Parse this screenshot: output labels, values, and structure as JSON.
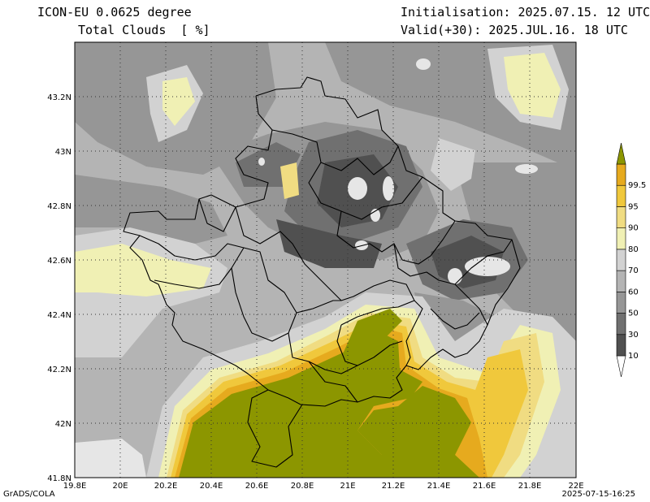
{
  "header": {
    "model": "ICON-EU 0.0625 degree",
    "field": "Total Clouds  [ %]",
    "init": "Initialisation: 2025.07.15. 12 UTC",
    "valid": "Valid(+30): 2025.JUL.16. 18 UTC"
  },
  "map": {
    "lon_ticks": [
      "19.8E",
      "20E",
      "20.2E",
      "20.4E",
      "20.6E",
      "20.8E",
      "21E",
      "21.2E",
      "21.4E",
      "21.6E",
      "21.8E",
      "22E"
    ],
    "lat_ticks": [
      "43.2N",
      "43N",
      "42.8N",
      "42.6N",
      "42.4N",
      "42.2N",
      "42N",
      "41.8N"
    ],
    "lon_range": [
      19.8,
      22.0
    ],
    "lat_range": [
      41.8,
      43.4
    ],
    "grid": true
  },
  "legend": {
    "levels": [
      "10",
      "30",
      "50",
      "60",
      "70",
      "80",
      "90",
      "95",
      "99.5"
    ],
    "colors": [
      "#ffffff",
      "#505050",
      "#707070",
      "#969696",
      "#b4b4b4",
      "#d2d2d2",
      "#f0f0b4",
      "#f0dc82",
      "#f0c83c",
      "#e6aa1e",
      "#8c9600"
    ]
  },
  "footer": {
    "left": "GrADS/COLA",
    "right": "2025-07-15-16:25"
  }
}
